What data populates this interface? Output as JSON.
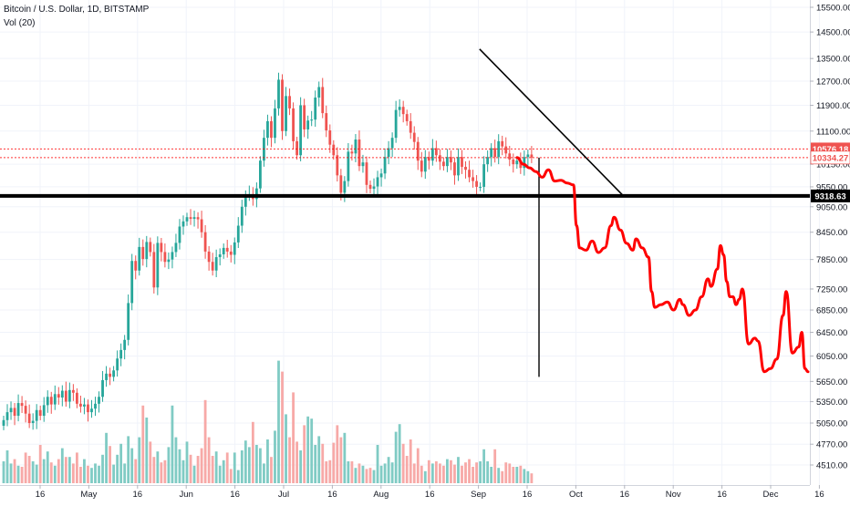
{
  "header": {
    "symbol_line": "Bitcoin / U.S. Dollar, 1D, BITSTAMP",
    "volume_line": "Vol (20)"
  },
  "colors": {
    "up": "#26a69a",
    "down": "#ef5350",
    "up_volume": "#80cbc4",
    "down_volume": "#f7a9a7",
    "drawing_red": "#ff0000",
    "support_line": "#000000",
    "trend_line": "#000000",
    "badge_last": "#ef5350",
    "badge_level": "#000000"
  },
  "chart_data": {
    "type": "candlestick",
    "title": "Bitcoin / U.S. Dollar, 1D, BITSTAMP",
    "y_axis": {
      "ticks": [
        4510,
        4770,
        5050,
        5350,
        5650,
        6050,
        6450,
        6850,
        7250,
        7850,
        8450,
        9050,
        9550,
        10150,
        11100,
        11900,
        12700,
        13500,
        14500,
        15500
      ],
      "tick_labels": [
        "4510.00",
        "4770.00",
        "5050.00",
        "5350.00",
        "5650.00",
        "6050.00",
        "6450.00",
        "6850.00",
        "7250.00",
        "7850.00",
        "8450.00",
        "9050.00",
        "9550.00",
        "10150.00",
        "11100.00",
        "11900.00",
        "12700.00",
        "13500.00",
        "14500.00",
        "15500.00"
      ],
      "scale": "log",
      "range": [
        4350,
        15900
      ]
    },
    "x_axis": {
      "tick_labels": [
        "16",
        "May",
        "16",
        "Jun",
        "16",
        "Jul",
        "16",
        "Aug",
        "16",
        "Sep",
        "16",
        "Oct",
        "16",
        "Nov",
        "16",
        "Dec",
        "16"
      ]
    },
    "badges": [
      {
        "label": "10576.18",
        "value": 10576.18,
        "style": "last"
      },
      {
        "label": "10334.27",
        "value": 10334.27,
        "style": "light"
      },
      {
        "label": "9318.63",
        "value": 9318.63,
        "style": "level"
      }
    ],
    "reference_lines": {
      "dotted_red": [
        10576.18,
        10334.27
      ],
      "support": 9318.63
    },
    "closes": [
      5090,
      5200,
      5260,
      5150,
      5330,
      5290,
      5180,
      5050,
      5080,
      5230,
      5150,
      5300,
      5420,
      5310,
      5460,
      5410,
      5510,
      5350,
      5520,
      5480,
      5320,
      5280,
      5310,
      5200,
      5250,
      5320,
      5420,
      5670,
      5770,
      5720,
      5820,
      6010,
      6150,
      6320,
      6980,
      7820,
      7620,
      8120,
      7860,
      8230,
      8010,
      7280,
      8210,
      8010,
      7800,
      7850,
      8010,
      8210,
      8580,
      8700,
      8800,
      8760,
      8800,
      8750,
      8450,
      8020,
      7800,
      7620,
      7900,
      7960,
      8100,
      8020,
      7950,
      8220,
      8600,
      9050,
      9320,
      9350,
      9240,
      9510,
      10250,
      10900,
      11400,
      10900,
      11800,
      12750,
      11100,
      12200,
      11800,
      10800,
      10400,
      11900,
      11150,
      11420,
      11450,
      12150,
      12500,
      11650,
      11120,
      10700,
      10400,
      9850,
      9400,
      9700,
      10500,
      10450,
      10850,
      10100,
      10200,
      9600,
      9500,
      9560,
      9800,
      9900,
      10350,
      10600,
      10900,
      11750,
      11850,
      11620,
      11400,
      11050,
      10780,
      10250,
      9950,
      10350,
      10250,
      10600,
      10400,
      10220,
      10100,
      10350,
      10200,
      9850,
      10350,
      10080,
      10000,
      9800,
      9700,
      9550,
      9550,
      10150,
      10350,
      10600,
      10350,
      10800,
      10650,
      10450,
      10280,
      10150,
      10250,
      10050,
      10350,
      10420,
      10334
    ],
    "volumes": [
      2,
      3,
      1.8,
      2.2,
      1.6,
      1.5,
      2.8,
      2.5,
      2,
      1.7,
      3.5,
      2.2,
      2.9,
      1.9,
      1.6,
      2.2,
      3.2,
      2.4,
      2.4,
      1.8,
      2.8,
      1.5,
      2.2,
      1.6,
      1.4,
      1.8,
      1.6,
      2.6,
      4.6,
      3.4,
      1.7,
      2.6,
      3.6,
      1.8,
      4.3,
      3.2,
      2.2,
      4.2,
      7.1,
      6,
      3.8,
      2.4,
      2.9,
      1.9,
      2.1,
      3.3,
      7.1,
      4.2,
      3.1,
      2.1,
      3.8,
      2.6,
      1.6,
      2.5,
      3.2,
      7.6,
      4.2,
      2.5,
      2.9,
      1.6,
      2.1,
      2.8,
      1.3,
      2.8,
      1.2,
      3,
      3.9,
      3.3,
      5.6,
      3.5,
      3.2,
      1.8,
      4,
      2.4,
      4.8,
      11.2,
      10.2,
      6.3,
      4.2,
      8.3,
      3.8,
      3,
      5.3,
      6.1,
      5.9,
      3.5,
      4.3,
      3.6,
      2,
      2.1,
      3.7,
      5.3,
      4.2,
      4.6,
      2,
      2,
      1.4,
      1.8,
      1.6,
      1.3,
      1.4,
      1.2,
      3.5,
      1.6,
      1.8,
      2.4,
      1.9,
      4.7,
      5.4,
      3.6,
      2.5,
      4,
      1.8,
      3.2,
      1.6,
      1.1,
      2.1,
      1.8,
      2,
      1.8,
      1.6,
      2.2,
      2.1,
      1.7,
      2.4,
      1.6,
      1.9,
      2.2,
      1.5,
      1.9,
      2,
      3.1,
      2,
      1.5,
      3.1,
      1.4,
      1.1,
      1.9,
      1.8,
      1.5,
      1.5,
      1.6,
      1.3,
      1.1,
      0.9
    ],
    "forecast_curve": [
      [
        0,
        10334
      ],
      [
        2,
        10150
      ],
      [
        4,
        10050
      ],
      [
        6,
        9950
      ],
      [
        8,
        9800
      ],
      [
        10,
        10000
      ],
      [
        12,
        9700
      ],
      [
        14,
        9720
      ],
      [
        16,
        9650
      ],
      [
        18,
        9600
      ],
      [
        19,
        8600
      ],
      [
        20,
        8100
      ],
      [
        22,
        8050
      ],
      [
        24,
        8250
      ],
      [
        26,
        8000
      ],
      [
        28,
        8100
      ],
      [
        30,
        8600
      ],
      [
        31,
        8800
      ],
      [
        33,
        8500
      ],
      [
        35,
        8200
      ],
      [
        37,
        8050
      ],
      [
        38,
        8300
      ],
      [
        40,
        8100
      ],
      [
        42,
        7900
      ],
      [
        43,
        7200
      ],
      [
        44,
        6900
      ],
      [
        46,
        6950
      ],
      [
        48,
        7000
      ],
      [
        50,
        6850
      ],
      [
        52,
        7050
      ],
      [
        53,
        6950
      ],
      [
        55,
        6750
      ],
      [
        57,
        6850
      ],
      [
        59,
        7100
      ],
      [
        61,
        7450
      ],
      [
        62,
        7300
      ],
      [
        64,
        7650
      ],
      [
        65,
        8150
      ],
      [
        66,
        7950
      ],
      [
        67,
        7400
      ],
      [
        68,
        7100
      ],
      [
        69,
        7100
      ],
      [
        70,
        6950
      ],
      [
        71,
        7050
      ],
      [
        72,
        7250
      ],
      [
        74,
        6250
      ],
      [
        76,
        6350
      ],
      [
        77,
        6300
      ],
      [
        79,
        5800
      ],
      [
        81,
        5850
      ],
      [
        83,
        6000
      ],
      [
        85,
        6750
      ],
      [
        86,
        7200
      ],
      [
        88,
        6100
      ],
      [
        90,
        6200
      ],
      [
        91,
        6450
      ],
      [
        92,
        5850
      ],
      [
        93,
        5800
      ]
    ],
    "trend_line": {
      "from": [
        -12,
        13850
      ],
      "to": [
        34,
        9318.63
      ]
    },
    "vertical_line": {
      "x": 7,
      "from": 10334,
      "to": 5720
    }
  }
}
